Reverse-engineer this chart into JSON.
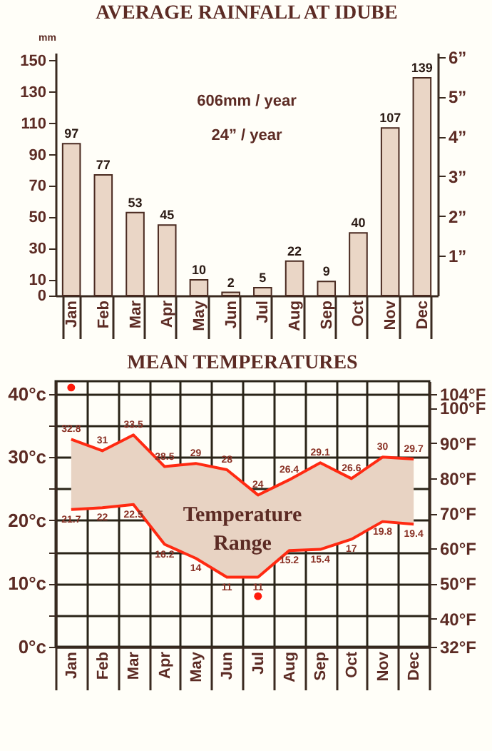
{
  "chart_data": [
    {
      "type": "bar",
      "title": "AVERAGE RAINFALL AT IDUBE",
      "ylabel": "mm",
      "categories": [
        "Jan",
        "Feb",
        "Mar",
        "Apr",
        "May",
        "Jun",
        "Jul",
        "Aug",
        "Sep",
        "Oct",
        "Nov",
        "Dec"
      ],
      "values": [
        97,
        77,
        53,
        45,
        10,
        2,
        5,
        22,
        9,
        40,
        107,
        139
      ],
      "color": "#ead6c6",
      "data_labels": true,
      "ylim": [
        0,
        155
      ],
      "yticks": [
        0,
        10,
        30,
        50,
        70,
        90,
        110,
        130,
        150
      ],
      "y2lim": [
        0,
        6.1
      ],
      "y2ticks": [
        {
          "value": 1,
          "label": "1”"
        },
        {
          "value": 2,
          "label": "2”"
        },
        {
          "value": 3,
          "label": "3”"
        },
        {
          "value": 4,
          "label": "4”"
        },
        {
          "value": 5,
          "label": "5”"
        },
        {
          "value": 6,
          "label": "6”"
        }
      ],
      "annotations": [
        "606mm / year",
        "24” / year"
      ]
    },
    {
      "type": "line",
      "title": "MEAN TEMPERATURES",
      "categories": [
        "Jan",
        "Feb",
        "Mar",
        "Apr",
        "May",
        "Jun",
        "Jul",
        "Aug",
        "Sep",
        "Oct",
        "Nov",
        "Dec"
      ],
      "series": [
        {
          "type": "line",
          "color": "#ff2a12",
          "values": [
            32.8,
            31,
            33.5,
            28.5,
            29,
            28,
            24,
            26.4,
            29.1,
            26.6,
            30,
            29.7
          ],
          "lower": [
            21.7,
            22,
            22.5,
            16.2,
            14,
            11,
            11,
            15.2,
            15.4,
            17,
            19.8,
            19.4
          ],
          "upper": [
            32.8,
            31,
            33.5,
            28.5,
            29,
            28,
            24,
            26.4,
            29.1,
            26.6,
            30,
            29.7
          ],
          "value_labels": [
            "32.8",
            "31",
            "33.5",
            "28.5",
            "29",
            "28",
            "24",
            "26.4",
            "29.1",
            "26.6",
            "30",
            "29.7"
          ]
        },
        {
          "type": "line",
          "color": "#ff2a12",
          "values": [
            21.7,
            22,
            22.5,
            16.2,
            14,
            11,
            11,
            15.2,
            15.4,
            17,
            19.8,
            19.4
          ],
          "value_labels": [
            "21.7",
            "22",
            "22.5",
            "16.2",
            "14",
            "11",
            "11",
            "15.2",
            "15.4",
            "17",
            "19.8",
            "19.4"
          ]
        },
        {
          "type": "scatter",
          "color": "#ff1a0a",
          "x": [
            "Jan",
            "Jul"
          ],
          "values": [
            41,
            8
          ]
        }
      ],
      "grid": true,
      "ylim": [
        0,
        42
      ],
      "yticks": [
        {
          "value": 0,
          "label": "0°c"
        },
        {
          "value": 5,
          "label": null
        },
        {
          "value": 10,
          "label": "10°c"
        },
        {
          "value": 15,
          "label": null
        },
        {
          "value": 20,
          "label": "20°c"
        },
        {
          "value": 25,
          "label": null
        },
        {
          "value": 30,
          "label": "30°c"
        },
        {
          "value": 35,
          "label": null
        },
        {
          "value": 40,
          "label": "40°c"
        }
      ],
      "y2lim": [
        32,
        107.6
      ],
      "y2ticks": [
        {
          "value": 32,
          "label": "32°F"
        },
        {
          "value": 40,
          "label": "40°F"
        },
        {
          "value": 50,
          "label": "50°F"
        },
        {
          "value": 60,
          "label": "60°F"
        },
        {
          "value": 70,
          "label": "70°F"
        },
        {
          "value": 80,
          "label": "80°F"
        },
        {
          "value": 90,
          "label": "90°F"
        },
        {
          "value": 100,
          "label": "100°F"
        },
        {
          "value": 104,
          "label": "104°F"
        }
      ],
      "annotations": [
        "Temperature Range"
      ]
    }
  ]
}
